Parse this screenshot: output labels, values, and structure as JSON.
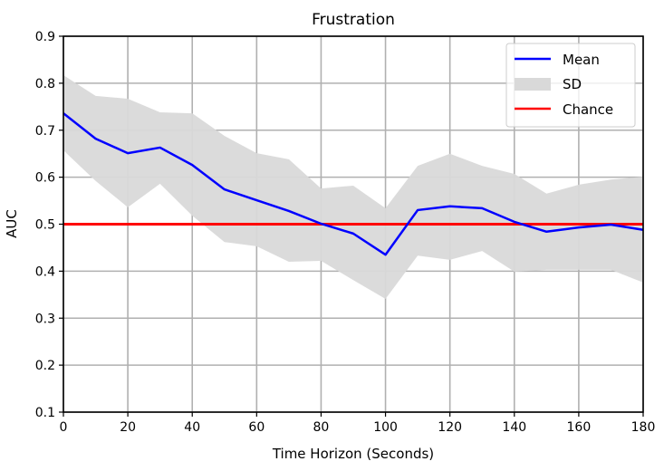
{
  "chart_data": {
    "type": "line",
    "title": "Frustration",
    "xlabel": "Time Horizon (Seconds)",
    "ylabel": "AUC",
    "xlim": [
      0,
      180
    ],
    "ylim": [
      0.1,
      0.9
    ],
    "xticks": [
      "0",
      "20",
      "40",
      "60",
      "80",
      "100",
      "120",
      "140",
      "160",
      "180"
    ],
    "yticks": [
      "0.1",
      "0.2",
      "0.3",
      "0.4",
      "0.5",
      "0.6",
      "0.7",
      "0.8",
      "0.9"
    ],
    "grid": true,
    "legend_position": "top-right",
    "x": [
      0,
      10,
      20,
      30,
      40,
      50,
      60,
      70,
      80,
      90,
      100,
      110,
      120,
      130,
      140,
      150,
      160,
      170,
      180
    ],
    "series": [
      {
        "name": "Mean",
        "color": "#0000ff",
        "values": [
          0.736,
          0.682,
          0.651,
          0.663,
          0.626,
          0.574,
          0.551,
          0.528,
          0.501,
          0.48,
          0.435,
          0.53,
          0.538,
          0.534,
          0.505,
          0.484,
          0.493,
          0.499,
          0.488
        ]
      },
      {
        "name": "SD",
        "color": "#d9d9d9",
        "upper": [
          0.817,
          0.773,
          0.767,
          0.738,
          0.736,
          0.688,
          0.651,
          0.638,
          0.576,
          0.582,
          0.534,
          0.624,
          0.65,
          0.624,
          0.607,
          0.565,
          0.584,
          0.595,
          0.601
        ],
        "lower": [
          0.657,
          0.592,
          0.536,
          0.586,
          0.518,
          0.462,
          0.453,
          0.42,
          0.422,
          0.381,
          0.341,
          0.433,
          0.424,
          0.443,
          0.399,
          0.403,
          0.403,
          0.403,
          0.376
        ]
      },
      {
        "name": "Chance",
        "color": "#ff0000",
        "value": 0.5
      }
    ]
  }
}
